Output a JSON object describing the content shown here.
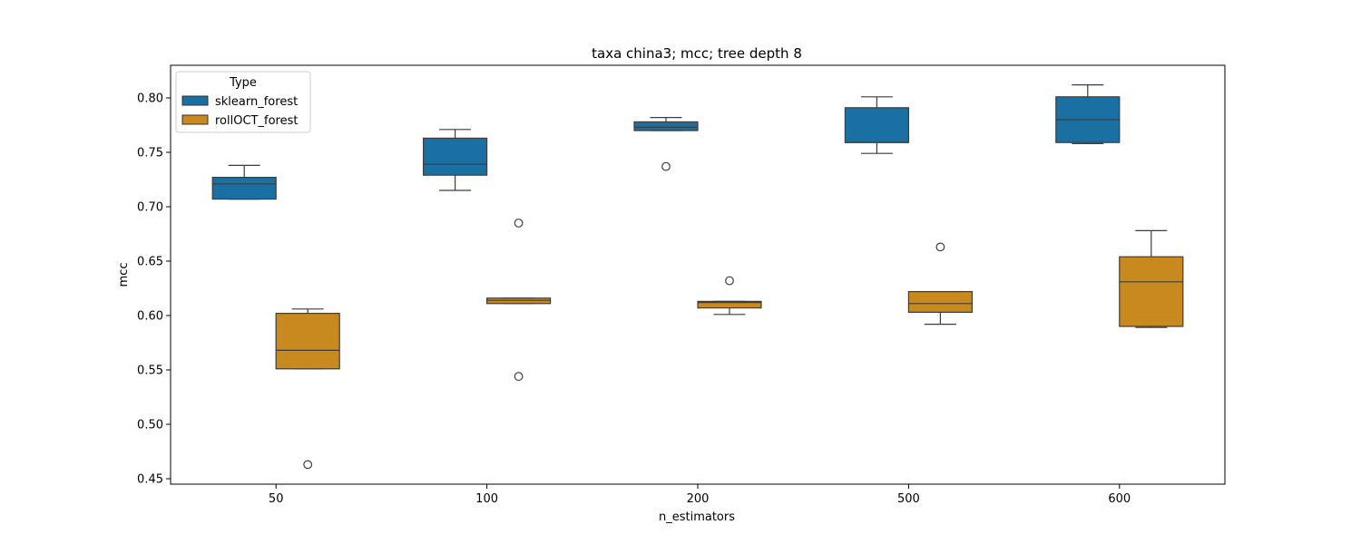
{
  "chart_data": {
    "type": "box",
    "title": "taxa china3; mcc; tree depth 8",
    "xlabel": "n_estimators",
    "ylabel": "mcc",
    "categories": [
      "50",
      "100",
      "200",
      "500",
      "600"
    ],
    "ylim": [
      0.445,
      0.83
    ],
    "yticks": [
      0.45,
      0.5,
      0.55,
      0.6,
      0.65,
      0.7,
      0.75,
      0.8
    ],
    "ytick_labels": [
      "0.45",
      "0.50",
      "0.55",
      "0.60",
      "0.65",
      "0.70",
      "0.75",
      "0.80"
    ],
    "grid": false,
    "legend": {
      "title": "Type",
      "position": "top-left"
    },
    "series": [
      {
        "name": "sklearn_forest",
        "color": "#1a6fa3",
        "boxes": [
          {
            "whisker_low": 0.707,
            "q1": 0.707,
            "median": 0.721,
            "q3": 0.727,
            "whisker_high": 0.738,
            "outliers": []
          },
          {
            "whisker_low": 0.715,
            "q1": 0.729,
            "median": 0.739,
            "q3": 0.763,
            "whisker_high": 0.771,
            "outliers": []
          },
          {
            "whisker_low": 0.77,
            "q1": 0.77,
            "median": 0.773,
            "q3": 0.778,
            "whisker_high": 0.782,
            "outliers": [
              0.737
            ]
          },
          {
            "whisker_low": 0.749,
            "q1": 0.759,
            "median": 0.759,
            "q3": 0.791,
            "whisker_high": 0.801,
            "outliers": []
          },
          {
            "whisker_low": 0.758,
            "q1": 0.759,
            "median": 0.78,
            "q3": 0.801,
            "whisker_high": 0.812,
            "outliers": []
          }
        ]
      },
      {
        "name": "rollOCT_forest",
        "color": "#c88a1f",
        "boxes": [
          {
            "whisker_low": 0.551,
            "q1": 0.551,
            "median": 0.568,
            "q3": 0.602,
            "whisker_high": 0.606,
            "outliers": [
              0.463
            ]
          },
          {
            "whisker_low": 0.611,
            "q1": 0.611,
            "median": 0.614,
            "q3": 0.616,
            "whisker_high": 0.616,
            "outliers": [
              0.685,
              0.544
            ]
          },
          {
            "whisker_low": 0.601,
            "q1": 0.607,
            "median": 0.612,
            "q3": 0.613,
            "whisker_high": 0.613,
            "outliers": [
              0.632
            ]
          },
          {
            "whisker_low": 0.592,
            "q1": 0.603,
            "median": 0.611,
            "q3": 0.622,
            "whisker_high": 0.622,
            "outliers": [
              0.663
            ]
          },
          {
            "whisker_low": 0.589,
            "q1": 0.59,
            "median": 0.631,
            "q3": 0.654,
            "whisker_high": 0.678,
            "outliers": []
          }
        ]
      }
    ]
  }
}
